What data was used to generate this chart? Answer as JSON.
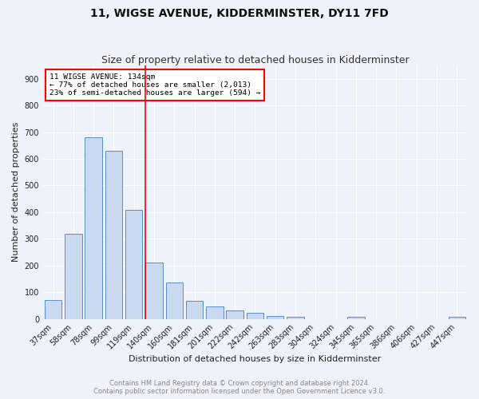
{
  "title": "11, WIGSE AVENUE, KIDDERMINSTER, DY11 7FD",
  "subtitle": "Size of property relative to detached houses in Kidderminster",
  "xlabel": "Distribution of detached houses by size in Kidderminster",
  "ylabel": "Number of detached properties",
  "footnote1": "Contains HM Land Registry data © Crown copyright and database right 2024.",
  "footnote2": "Contains public sector information licensed under the Open Government Licence v3.0.",
  "categories": [
    "37sqm",
    "58sqm",
    "78sqm",
    "99sqm",
    "119sqm",
    "140sqm",
    "160sqm",
    "181sqm",
    "201sqm",
    "222sqm",
    "242sqm",
    "263sqm",
    "283sqm",
    "304sqm",
    "324sqm",
    "345sqm",
    "365sqm",
    "386sqm",
    "406sqm",
    "427sqm",
    "447sqm"
  ],
  "values": [
    70,
    320,
    680,
    630,
    410,
    210,
    135,
    68,
    47,
    33,
    22,
    12,
    8,
    0,
    0,
    7,
    0,
    0,
    0,
    0,
    8
  ],
  "bar_color": "#c9d9f0",
  "bar_edge_color": "#5b8ec4",
  "property_line_label": "11 WIGSE AVENUE: 134sqm",
  "annotation_line1": "← 77% of detached houses are smaller (2,013)",
  "annotation_line2": "23% of semi-detached houses are larger (594) →",
  "vline_color": "red",
  "ylim": [
    0,
    950
  ],
  "yticks": [
    0,
    100,
    200,
    300,
    400,
    500,
    600,
    700,
    800,
    900
  ],
  "background_color": "#eef2fb",
  "grid_color": "#ffffff",
  "title_fontsize": 10,
  "subtitle_fontsize": 9,
  "axis_label_fontsize": 8,
  "tick_fontsize": 7,
  "footnote_fontsize": 6
}
